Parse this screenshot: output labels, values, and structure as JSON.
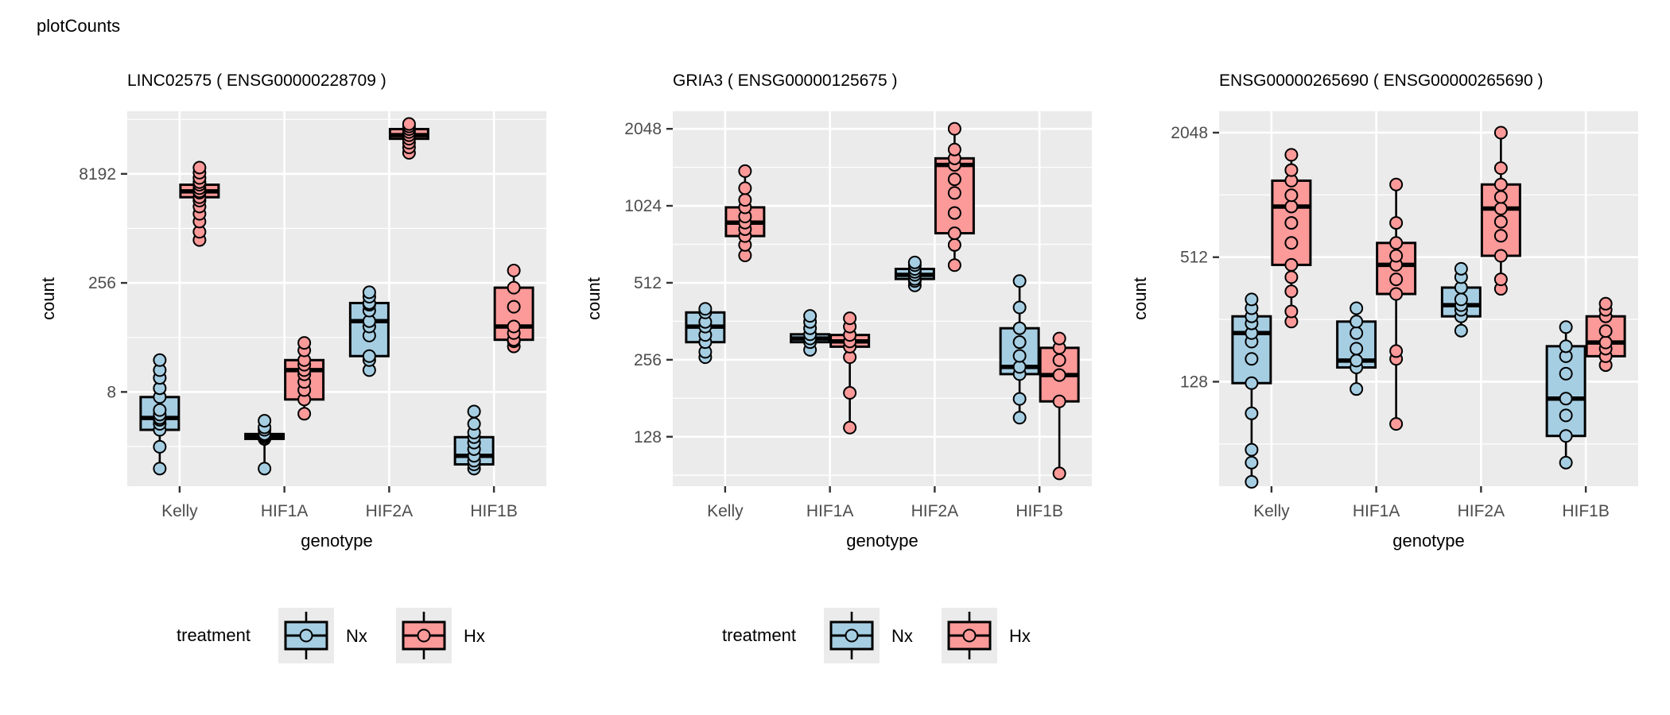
{
  "figure_title": "plotCounts",
  "colors": {
    "Nx": "#a6cee3",
    "Hx": "#fb9a99",
    "panel_bg": "#ebebeb",
    "grid": "#ffffff",
    "outline": "#000000"
  },
  "legend": {
    "title": "treatment",
    "items": [
      {
        "label": "Nx",
        "color": "#a6cee3"
      },
      {
        "label": "Hx",
        "color": "#fb9a99"
      }
    ]
  },
  "chart_data": [
    {
      "type": "boxplot",
      "title": "LINC02575 ( ENSG00000228709 )",
      "xlabel": "genotype",
      "ylabel": "count",
      "yscale": "log2",
      "ylim": [
        0.4,
        60000
      ],
      "yticks": [
        8,
        256,
        8192
      ],
      "ytick_labels": [
        "8",
        "256",
        "8192"
      ],
      "categories": [
        "Kelly",
        "HIF1A",
        "HIF2A",
        "HIF1B"
      ],
      "groups": [
        "Nx",
        "Hx"
      ],
      "legend": true,
      "boxes": [
        {
          "category": "Kelly",
          "group": "Nx",
          "q1": 2.4,
          "median": 3.5,
          "q3": 6.8,
          "lower": 0.7,
          "upper": 22,
          "points": [
            0.7,
            1.4,
            2.4,
            2.9,
            3.3,
            3.5,
            3.9,
            4.5,
            6.8,
            9,
            12.5,
            16,
            22
          ]
        },
        {
          "category": "Kelly",
          "group": "Hx",
          "q1": 3900,
          "median": 4700,
          "q3": 5800,
          "lower": 1000,
          "upper": 10000,
          "points": [
            1000,
            1300,
            1800,
            2300,
            2900,
            3500,
            3900,
            4500,
            4700,
            5200,
            5800,
            6300,
            7200,
            8500,
            10000
          ]
        },
        {
          "category": "HIF1A",
          "group": "Nx",
          "q1": 1.8,
          "median": 1.95,
          "q3": 2.1,
          "lower": 0.7,
          "upper": 3.2,
          "points": [
            0.7,
            1.8,
            1.9,
            2.0,
            2.1,
            2.4,
            2.6,
            3.2
          ]
        },
        {
          "category": "HIF1A",
          "group": "Hx",
          "q1": 6.3,
          "median": 16,
          "q3": 22,
          "lower": 4.0,
          "upper": 38,
          "points": [
            4.0,
            6.3,
            8.5,
            11,
            14,
            16,
            19,
            22,
            30,
            38
          ]
        },
        {
          "category": "HIF2A",
          "group": "Nx",
          "q1": 25,
          "median": 76,
          "q3": 135,
          "lower": 16,
          "upper": 190,
          "points": [
            16,
            22,
            25,
            48,
            64,
            76,
            106,
            128,
            135,
            165,
            190
          ]
        },
        {
          "category": "HIF2A",
          "group": "Hx",
          "q1": 25000,
          "median": 28000,
          "q3": 34000,
          "lower": 16000,
          "upper": 40000,
          "points": [
            16000,
            19000,
            22000,
            25000,
            28000,
            31000,
            34000,
            37000,
            40000
          ]
        },
        {
          "category": "HIF1B",
          "group": "Nx",
          "q1": 0.8,
          "median": 1.05,
          "q3": 1.9,
          "lower": 0.7,
          "upper": 4.3,
          "points": [
            0.7,
            0.8,
            0.9,
            1.05,
            1.3,
            1.6,
            1.9,
            2.2,
            2.9,
            4.3
          ]
        },
        {
          "category": "HIF1B",
          "group": "Hx",
          "q1": 42,
          "median": 64,
          "q3": 220,
          "lower": 34,
          "upper": 380,
          "points": [
            34,
            40,
            42,
            52,
            64,
            120,
            220,
            380
          ]
        }
      ]
    },
    {
      "type": "boxplot",
      "title": "GRIA3 ( ENSG00000125675 )",
      "xlabel": "genotype",
      "ylabel": "count",
      "yscale": "log2",
      "ylim": [
        82,
        2400
      ],
      "yticks": [
        128,
        256,
        512,
        1024,
        2048
      ],
      "ytick_labels": [
        "128",
        "256",
        "512",
        "1024",
        "2048"
      ],
      "categories": [
        "Kelly",
        "HIF1A",
        "HIF2A",
        "HIF1B"
      ],
      "groups": [
        "Nx",
        "Hx"
      ],
      "legend": true,
      "boxes": [
        {
          "category": "Kelly",
          "group": "Nx",
          "q1": 300,
          "median": 345,
          "q3": 392,
          "lower": 262,
          "upper": 405,
          "points": [
            262,
            275,
            300,
            320,
            345,
            360,
            392,
            405
          ]
        },
        {
          "category": "Kelly",
          "group": "Hx",
          "q1": 780,
          "median": 880,
          "q3": 1010,
          "lower": 655,
          "upper": 1400,
          "points": [
            655,
            720,
            780,
            830,
            880,
            930,
            1010,
            1080,
            1200,
            1400
          ]
        },
        {
          "category": "HIF1A",
          "group": "Nx",
          "q1": 300,
          "median": 310,
          "q3": 322,
          "lower": 280,
          "upper": 380,
          "points": [
            280,
            300,
            310,
            322,
            340,
            360,
            380
          ]
        },
        {
          "category": "HIF1A",
          "group": "Hx",
          "q1": 288,
          "median": 302,
          "q3": 320,
          "lower": 139,
          "upper": 372,
          "points": [
            139,
            190,
            262,
            288,
            302,
            320,
            345,
            372
          ]
        },
        {
          "category": "HIF2A",
          "group": "Nx",
          "q1": 530,
          "median": 550,
          "q3": 580,
          "lower": 500,
          "upper": 615,
          "points": [
            500,
            520,
            530,
            550,
            565,
            580,
            600,
            615
          ]
        },
        {
          "category": "HIF2A",
          "group": "Hx",
          "q1": 800,
          "median": 1480,
          "q3": 1570,
          "lower": 600,
          "upper": 2048,
          "points": [
            600,
            720,
            800,
            960,
            1150,
            1300,
            1480,
            1570,
            1700,
            2048
          ]
        },
        {
          "category": "HIF1B",
          "group": "Nx",
          "q1": 225,
          "median": 240,
          "q3": 340,
          "lower": 152,
          "upper": 520,
          "points": [
            152,
            180,
            225,
            240,
            265,
            300,
            340,
            410,
            520
          ]
        },
        {
          "category": "HIF1B",
          "group": "Hx",
          "q1": 176,
          "median": 223,
          "q3": 285,
          "lower": 92,
          "upper": 310,
          "points": [
            92,
            176,
            223,
            255,
            285,
            310
          ]
        }
      ]
    },
    {
      "type": "boxplot",
      "title": "ENSG00000265690 ( ENSG00000265690 )",
      "xlabel": "genotype",
      "ylabel": "count",
      "yscale": "log2",
      "ylim": [
        40,
        2600
      ],
      "yticks": [
        128,
        512,
        2048
      ],
      "ytick_labels": [
        "128",
        "512",
        "2048"
      ],
      "categories": [
        "Kelly",
        "HIF1A",
        "HIF2A",
        "HIF1B"
      ],
      "groups": [
        "Nx",
        "Hx"
      ],
      "legend": false,
      "boxes": [
        {
          "category": "Kelly",
          "group": "Nx",
          "q1": 126,
          "median": 220,
          "q3": 265,
          "lower": 42,
          "upper": 320,
          "points": [
            42,
            52,
            60,
            90,
            126,
            165,
            200,
            220,
            245,
            265,
            290,
            320
          ]
        },
        {
          "category": "Kelly",
          "group": "Hx",
          "q1": 470,
          "median": 900,
          "q3": 1200,
          "lower": 250,
          "upper": 1600,
          "points": [
            250,
            280,
            350,
            410,
            470,
            600,
            750,
            900,
            1020,
            1200,
            1350,
            1600
          ]
        },
        {
          "category": "HIF1A",
          "group": "Nx",
          "q1": 150,
          "median": 162,
          "q3": 250,
          "lower": 118,
          "upper": 290,
          "points": [
            118,
            150,
            162,
            185,
            220,
            250,
            290
          ]
        },
        {
          "category": "HIF1A",
          "group": "Hx",
          "q1": 340,
          "median": 470,
          "q3": 600,
          "lower": 80,
          "upper": 1150,
          "points": [
            80,
            165,
            180,
            340,
            400,
            470,
            520,
            600,
            750,
            1150
          ]
        },
        {
          "category": "HIF2A",
          "group": "Nx",
          "q1": 265,
          "median": 300,
          "q3": 365,
          "lower": 226,
          "upper": 450,
          "points": [
            226,
            265,
            285,
            300,
            320,
            365,
            410,
            450
          ]
        },
        {
          "category": "HIF2A",
          "group": "Hx",
          "q1": 520,
          "median": 880,
          "q3": 1150,
          "lower": 360,
          "upper": 2048,
          "points": [
            360,
            400,
            520,
            650,
            760,
            880,
            1000,
            1150,
            1380,
            2048
          ]
        },
        {
          "category": "HIF1B",
          "group": "Nx",
          "q1": 70,
          "median": 106,
          "q3": 190,
          "lower": 52,
          "upper": 235,
          "points": [
            52,
            70,
            88,
            106,
            140,
            170,
            190,
            235
          ]
        },
        {
          "category": "HIF1B",
          "group": "Hx",
          "q1": 170,
          "median": 198,
          "q3": 265,
          "lower": 154,
          "upper": 305,
          "points": [
            154,
            170,
            185,
            198,
            225,
            265,
            285,
            305
          ]
        }
      ]
    }
  ]
}
